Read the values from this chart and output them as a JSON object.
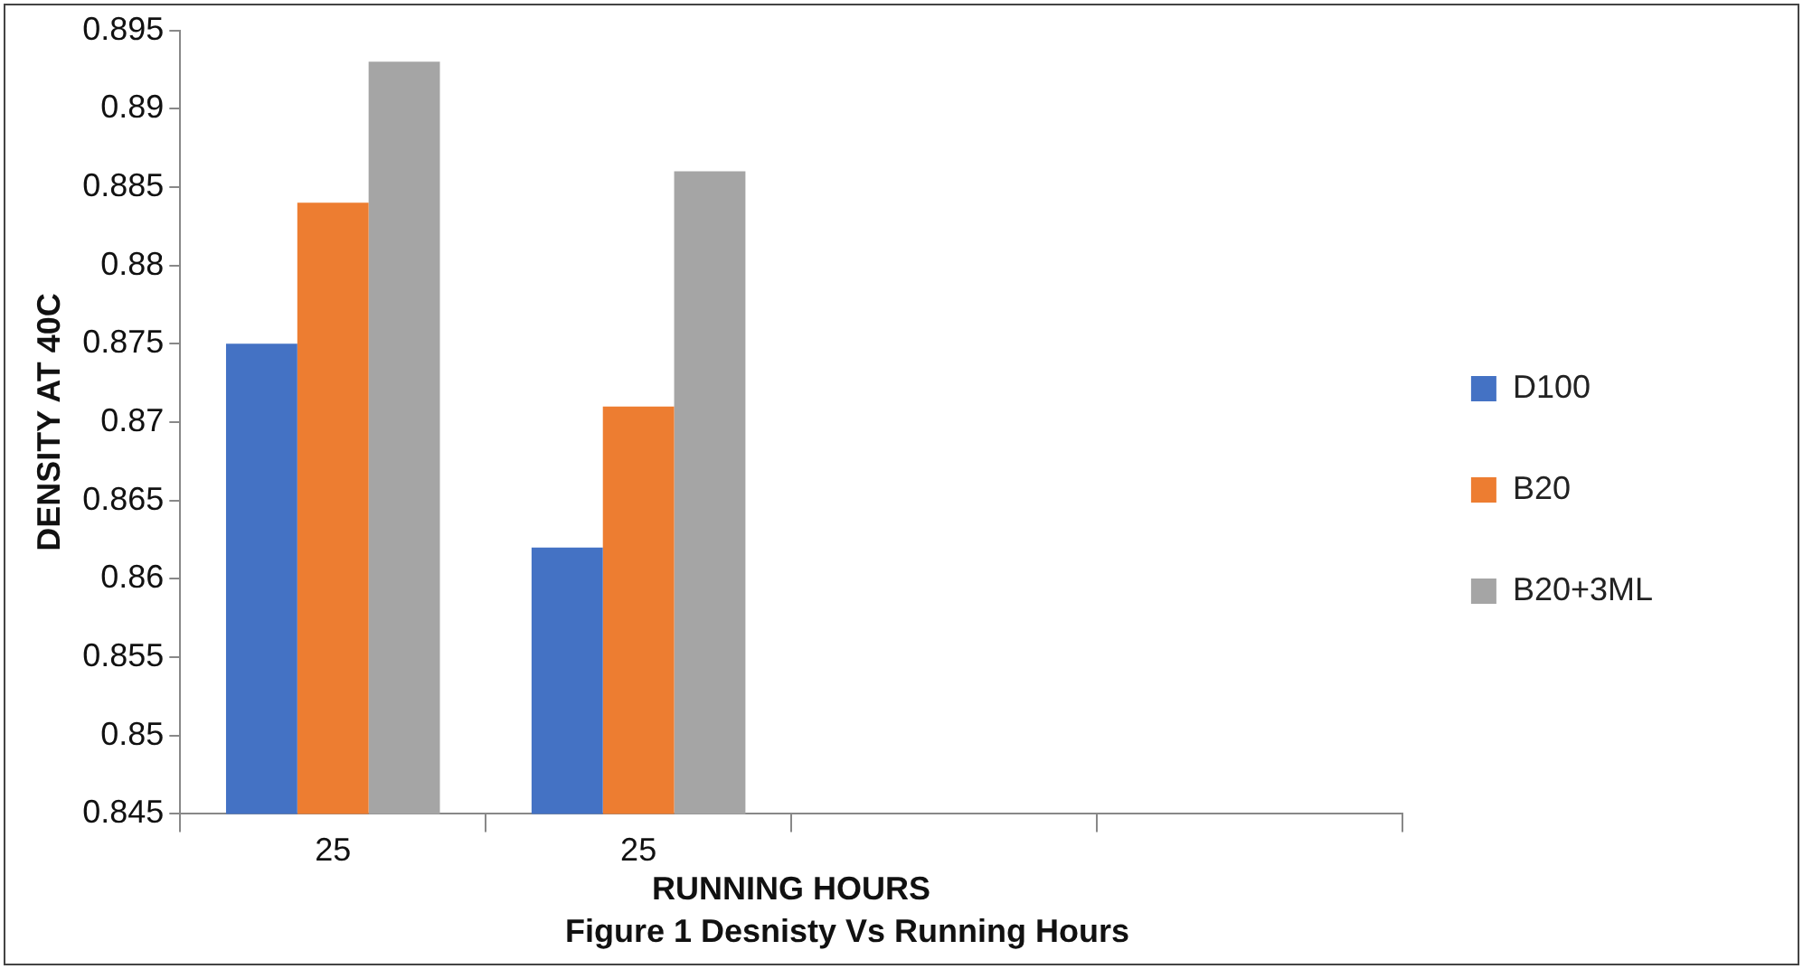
{
  "chart_data": {
    "type": "bar",
    "title": "Figure 1 Desnisty Vs Running Hours",
    "xlabel": "RUNNING HOURS",
    "ylabel": "DENSITY AT 40C",
    "categories": [
      "25",
      "25",
      null,
      null
    ],
    "series": [
      {
        "name": "D100",
        "color": "#4472c4",
        "values": [
          0.875,
          0.862,
          null,
          null
        ]
      },
      {
        "name": "B20",
        "color": "#ed7d31",
        "values": [
          0.884,
          0.871,
          null,
          null
        ]
      },
      {
        "name": "B20+3ML",
        "color": "#a5a5a5",
        "values": [
          0.893,
          0.886,
          null,
          null
        ]
      }
    ],
    "ylim": [
      0.845,
      0.895
    ],
    "yticks": [
      0.845,
      0.85,
      0.855,
      0.86,
      0.865,
      0.87,
      0.875,
      0.88,
      0.885,
      0.89,
      0.895
    ],
    "grid": false,
    "legend": "right"
  }
}
